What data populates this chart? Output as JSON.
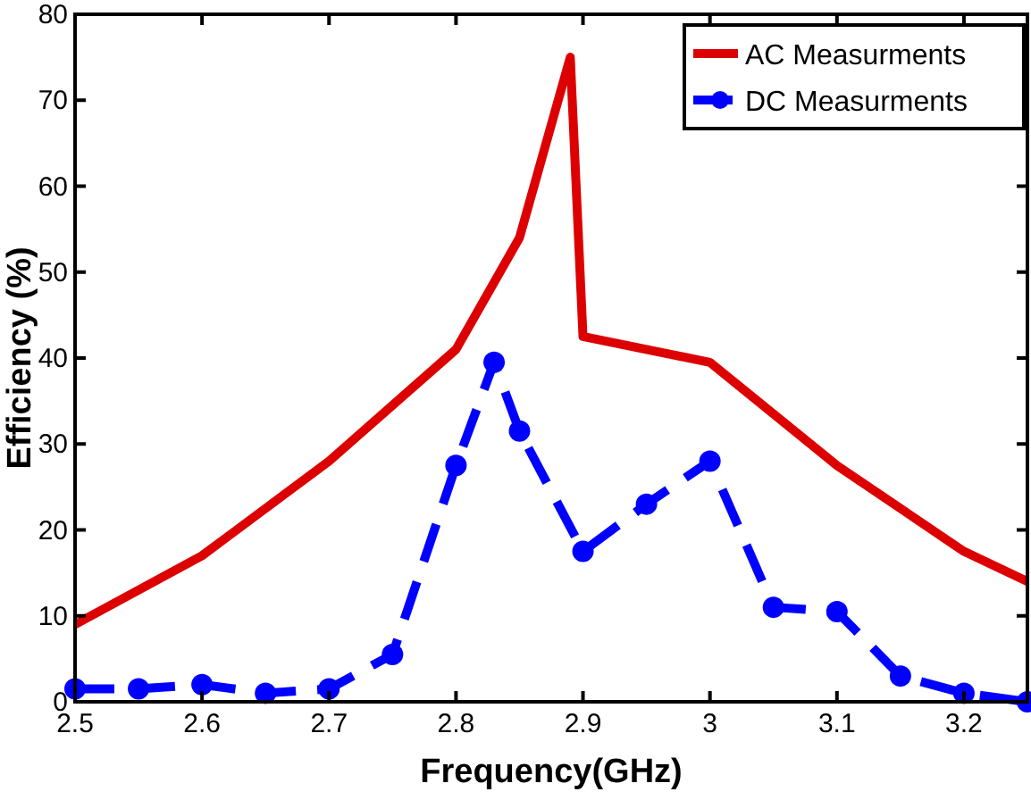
{
  "chart_data": {
    "type": "line",
    "xlabel": "Frequency(GHz)",
    "ylabel": "Efficiency (%)",
    "xlim": [
      2.5,
      3.25
    ],
    "ylim": [
      0,
      80
    ],
    "xticks": [
      2.5,
      2.6,
      2.7,
      2.8,
      2.9,
      {
        "value": 3.0,
        "label": "3"
      },
      3.1,
      3.2
    ],
    "yticks": [
      0,
      10,
      20,
      30,
      40,
      50,
      60,
      70,
      80
    ],
    "grid": false,
    "legend": "top right",
    "series": [
      {
        "name": "AC Measurments",
        "color": "#dd0000",
        "line_style": "solid",
        "marker": "none",
        "x": [
          2.5,
          2.6,
          2.7,
          2.8,
          2.85,
          2.89,
          2.9,
          3.0,
          3.1,
          3.2,
          3.25
        ],
        "values": [
          9,
          17,
          28,
          41,
          54,
          75,
          42.5,
          39.5,
          27.5,
          17.5,
          14
        ]
      },
      {
        "name": "DC Measurments",
        "color": "#0000ff",
        "line_style": "dashed",
        "marker": "circle",
        "x": [
          2.5,
          2.55,
          2.6,
          2.65,
          2.7,
          2.75,
          2.8,
          2.83,
          2.85,
          2.9,
          2.95,
          3.0,
          3.05,
          3.1,
          3.15,
          3.2,
          3.25
        ],
        "values": [
          1.5,
          1.5,
          2,
          1,
          1.5,
          5.5,
          27.5,
          39.5,
          31.5,
          17.5,
          23,
          28,
          11,
          10.5,
          3,
          1,
          0
        ]
      }
    ]
  }
}
